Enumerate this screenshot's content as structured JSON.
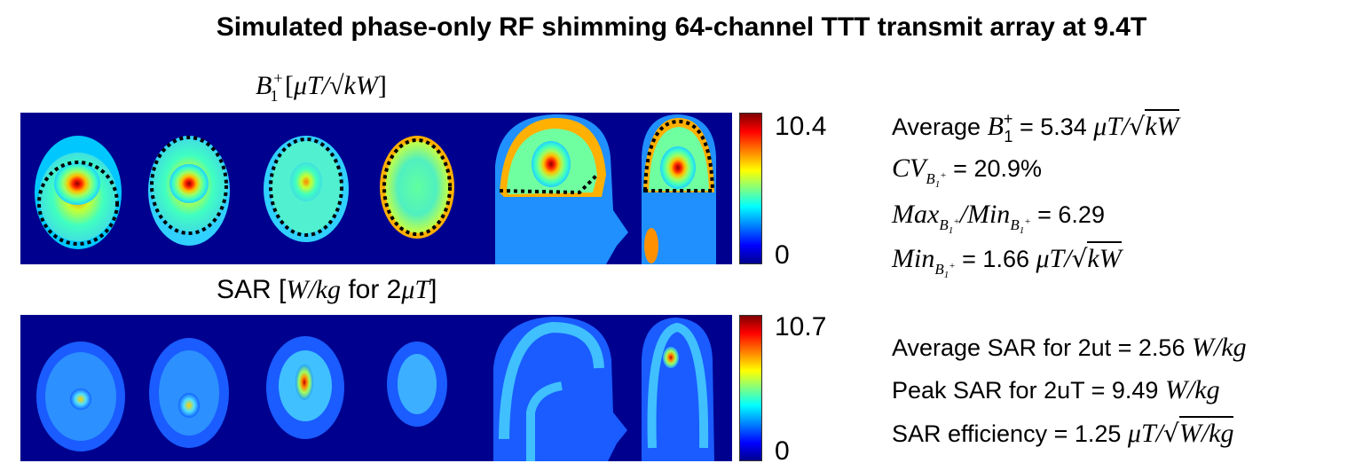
{
  "title": "Simulated phase-only RF shimming 64-channel TTT transmit array at 9.4T",
  "b1_panel": {
    "label_symbol": "B",
    "label_sub": "1",
    "label_sup": "+",
    "label_units": "μT/√kW",
    "colorbar_max": "10.4",
    "colorbar_min": "0"
  },
  "sar_panel": {
    "label_prefix": "SAR [",
    "label_unit": "W/kg",
    "label_mid": " for 2",
    "label_field": "μT",
    "label_suffix": "]",
    "colorbar_max": "10.7",
    "colorbar_min": "0"
  },
  "b1_stats": {
    "avg_prefix": "Average ",
    "avg_value": " = 5.34 ",
    "cv_label": "CV",
    "cv_value": " = 20.9%",
    "maxmin_max": "Max",
    "maxmin_min": "Min",
    "maxmin_value": " = 6.29",
    "min_label": "Min",
    "min_value": " = 1.66 "
  },
  "sar_stats": {
    "average": "Average SAR for 2ut = 2.56 ",
    "peak": "Peak SAR for 2uT = 9.49 ",
    "efficiency": "SAR efficiency = 1.25 ",
    "unit_wkg": "W/kg"
  },
  "colors": {
    "background_map": "#00008f",
    "jet_low": "#00008f",
    "jet_high": "#800000"
  }
}
